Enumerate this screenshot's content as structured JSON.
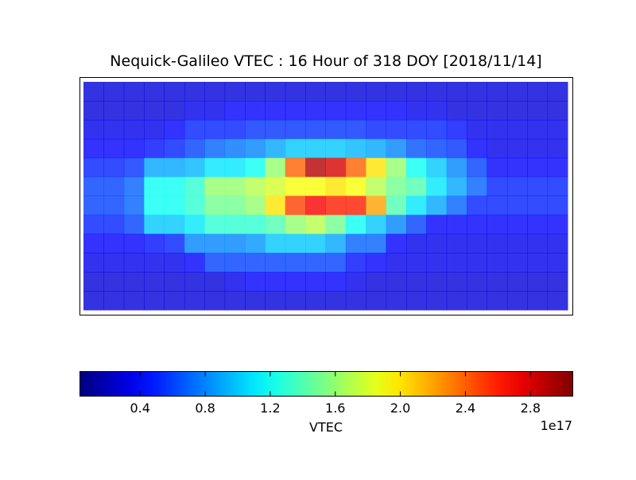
{
  "chart_data": {
    "type": "heatmap",
    "title": "Nequick-Galileo VTEC : 16 Hour of 318 DOY [2018/11/14]",
    "colormap": "jet",
    "values": [
      [
        0.3,
        0.3,
        0.3,
        0.3,
        0.3,
        0.3,
        0.3,
        0.3,
        0.3,
        0.3,
        0.3,
        0.3,
        0.3,
        0.3,
        0.3,
        0.3,
        0.3,
        0.3,
        0.3,
        0.3,
        0.3,
        0.3,
        0.3,
        0.3
      ],
      [
        0.3,
        0.3,
        0.3,
        0.3,
        0.3,
        0.35,
        0.35,
        0.4,
        0.4,
        0.4,
        0.4,
        0.4,
        0.4,
        0.4,
        0.4,
        0.4,
        0.35,
        0.35,
        0.3,
        0.3,
        0.3,
        0.3,
        0.3,
        0.3
      ],
      [
        0.35,
        0.35,
        0.35,
        0.35,
        0.4,
        0.5,
        0.5,
        0.5,
        0.55,
        0.55,
        0.55,
        0.55,
        0.55,
        0.55,
        0.5,
        0.5,
        0.5,
        0.5,
        0.45,
        0.35,
        0.35,
        0.35,
        0.35,
        0.35
      ],
      [
        0.4,
        0.4,
        0.4,
        0.45,
        0.5,
        0.6,
        0.7,
        0.75,
        0.8,
        0.9,
        1.0,
        1.0,
        1.0,
        0.95,
        0.9,
        0.8,
        0.65,
        0.6,
        0.55,
        0.4,
        0.35,
        0.35,
        0.35,
        0.35
      ],
      [
        0.5,
        0.5,
        0.55,
        0.9,
        0.9,
        0.95,
        1.1,
        1.1,
        1.2,
        1.6,
        2.4,
        2.9,
        2.8,
        2.4,
        2.0,
        1.6,
        1.2,
        1.0,
        0.8,
        0.6,
        0.4,
        0.4,
        0.4,
        0.4
      ],
      [
        0.6,
        0.6,
        0.7,
        1.2,
        1.2,
        1.3,
        1.6,
        1.6,
        1.7,
        1.8,
        1.9,
        1.9,
        2.0,
        1.9,
        1.7,
        1.5,
        1.4,
        1.1,
        0.9,
        0.7,
        0.5,
        0.5,
        0.5,
        0.5
      ],
      [
        0.6,
        0.6,
        0.7,
        1.2,
        1.2,
        1.3,
        1.5,
        1.5,
        1.6,
        2.0,
        2.5,
        2.7,
        2.6,
        2.6,
        2.2,
        1.4,
        1.1,
        0.9,
        0.7,
        0.5,
        0.5,
        0.5,
        0.5,
        0.5
      ],
      [
        0.5,
        0.5,
        0.6,
        1.0,
        1.0,
        1.1,
        1.3,
        1.3,
        1.3,
        1.4,
        1.6,
        1.7,
        1.5,
        1.2,
        1.0,
        0.8,
        0.6,
        0.4,
        0.4,
        0.4,
        0.4,
        0.4,
        0.4,
        0.4
      ],
      [
        0.4,
        0.4,
        0.4,
        0.45,
        0.5,
        0.8,
        0.8,
        0.8,
        0.85,
        1.0,
        1.0,
        1.0,
        0.9,
        0.7,
        0.7,
        0.4,
        0.35,
        0.35,
        0.35,
        0.35,
        0.35,
        0.35,
        0.35,
        0.35
      ],
      [
        0.35,
        0.35,
        0.35,
        0.35,
        0.35,
        0.4,
        0.6,
        0.6,
        0.6,
        0.6,
        0.6,
        0.6,
        0.6,
        0.45,
        0.4,
        0.35,
        0.35,
        0.35,
        0.35,
        0.35,
        0.35,
        0.35,
        0.35,
        0.35
      ],
      [
        0.3,
        0.3,
        0.3,
        0.3,
        0.3,
        0.3,
        0.3,
        0.35,
        0.4,
        0.4,
        0.4,
        0.4,
        0.4,
        0.35,
        0.3,
        0.3,
        0.3,
        0.3,
        0.3,
        0.3,
        0.3,
        0.3,
        0.3,
        0.3
      ],
      [
        0.3,
        0.3,
        0.3,
        0.3,
        0.3,
        0.3,
        0.3,
        0.3,
        0.3,
        0.3,
        0.3,
        0.3,
        0.3,
        0.3,
        0.3,
        0.3,
        0.3,
        0.3,
        0.3,
        0.3,
        0.3,
        0.3,
        0.3,
        0.3
      ]
    ],
    "clim": [
      0.03,
      3.06
    ],
    "colorbar": {
      "label": "VTEC",
      "offset_label": "1e17",
      "ticks": [
        0.4,
        0.8,
        1.2,
        1.6,
        {
          "value": 2,
          "label": "2.0"
        },
        2.4,
        2.8
      ]
    }
  }
}
